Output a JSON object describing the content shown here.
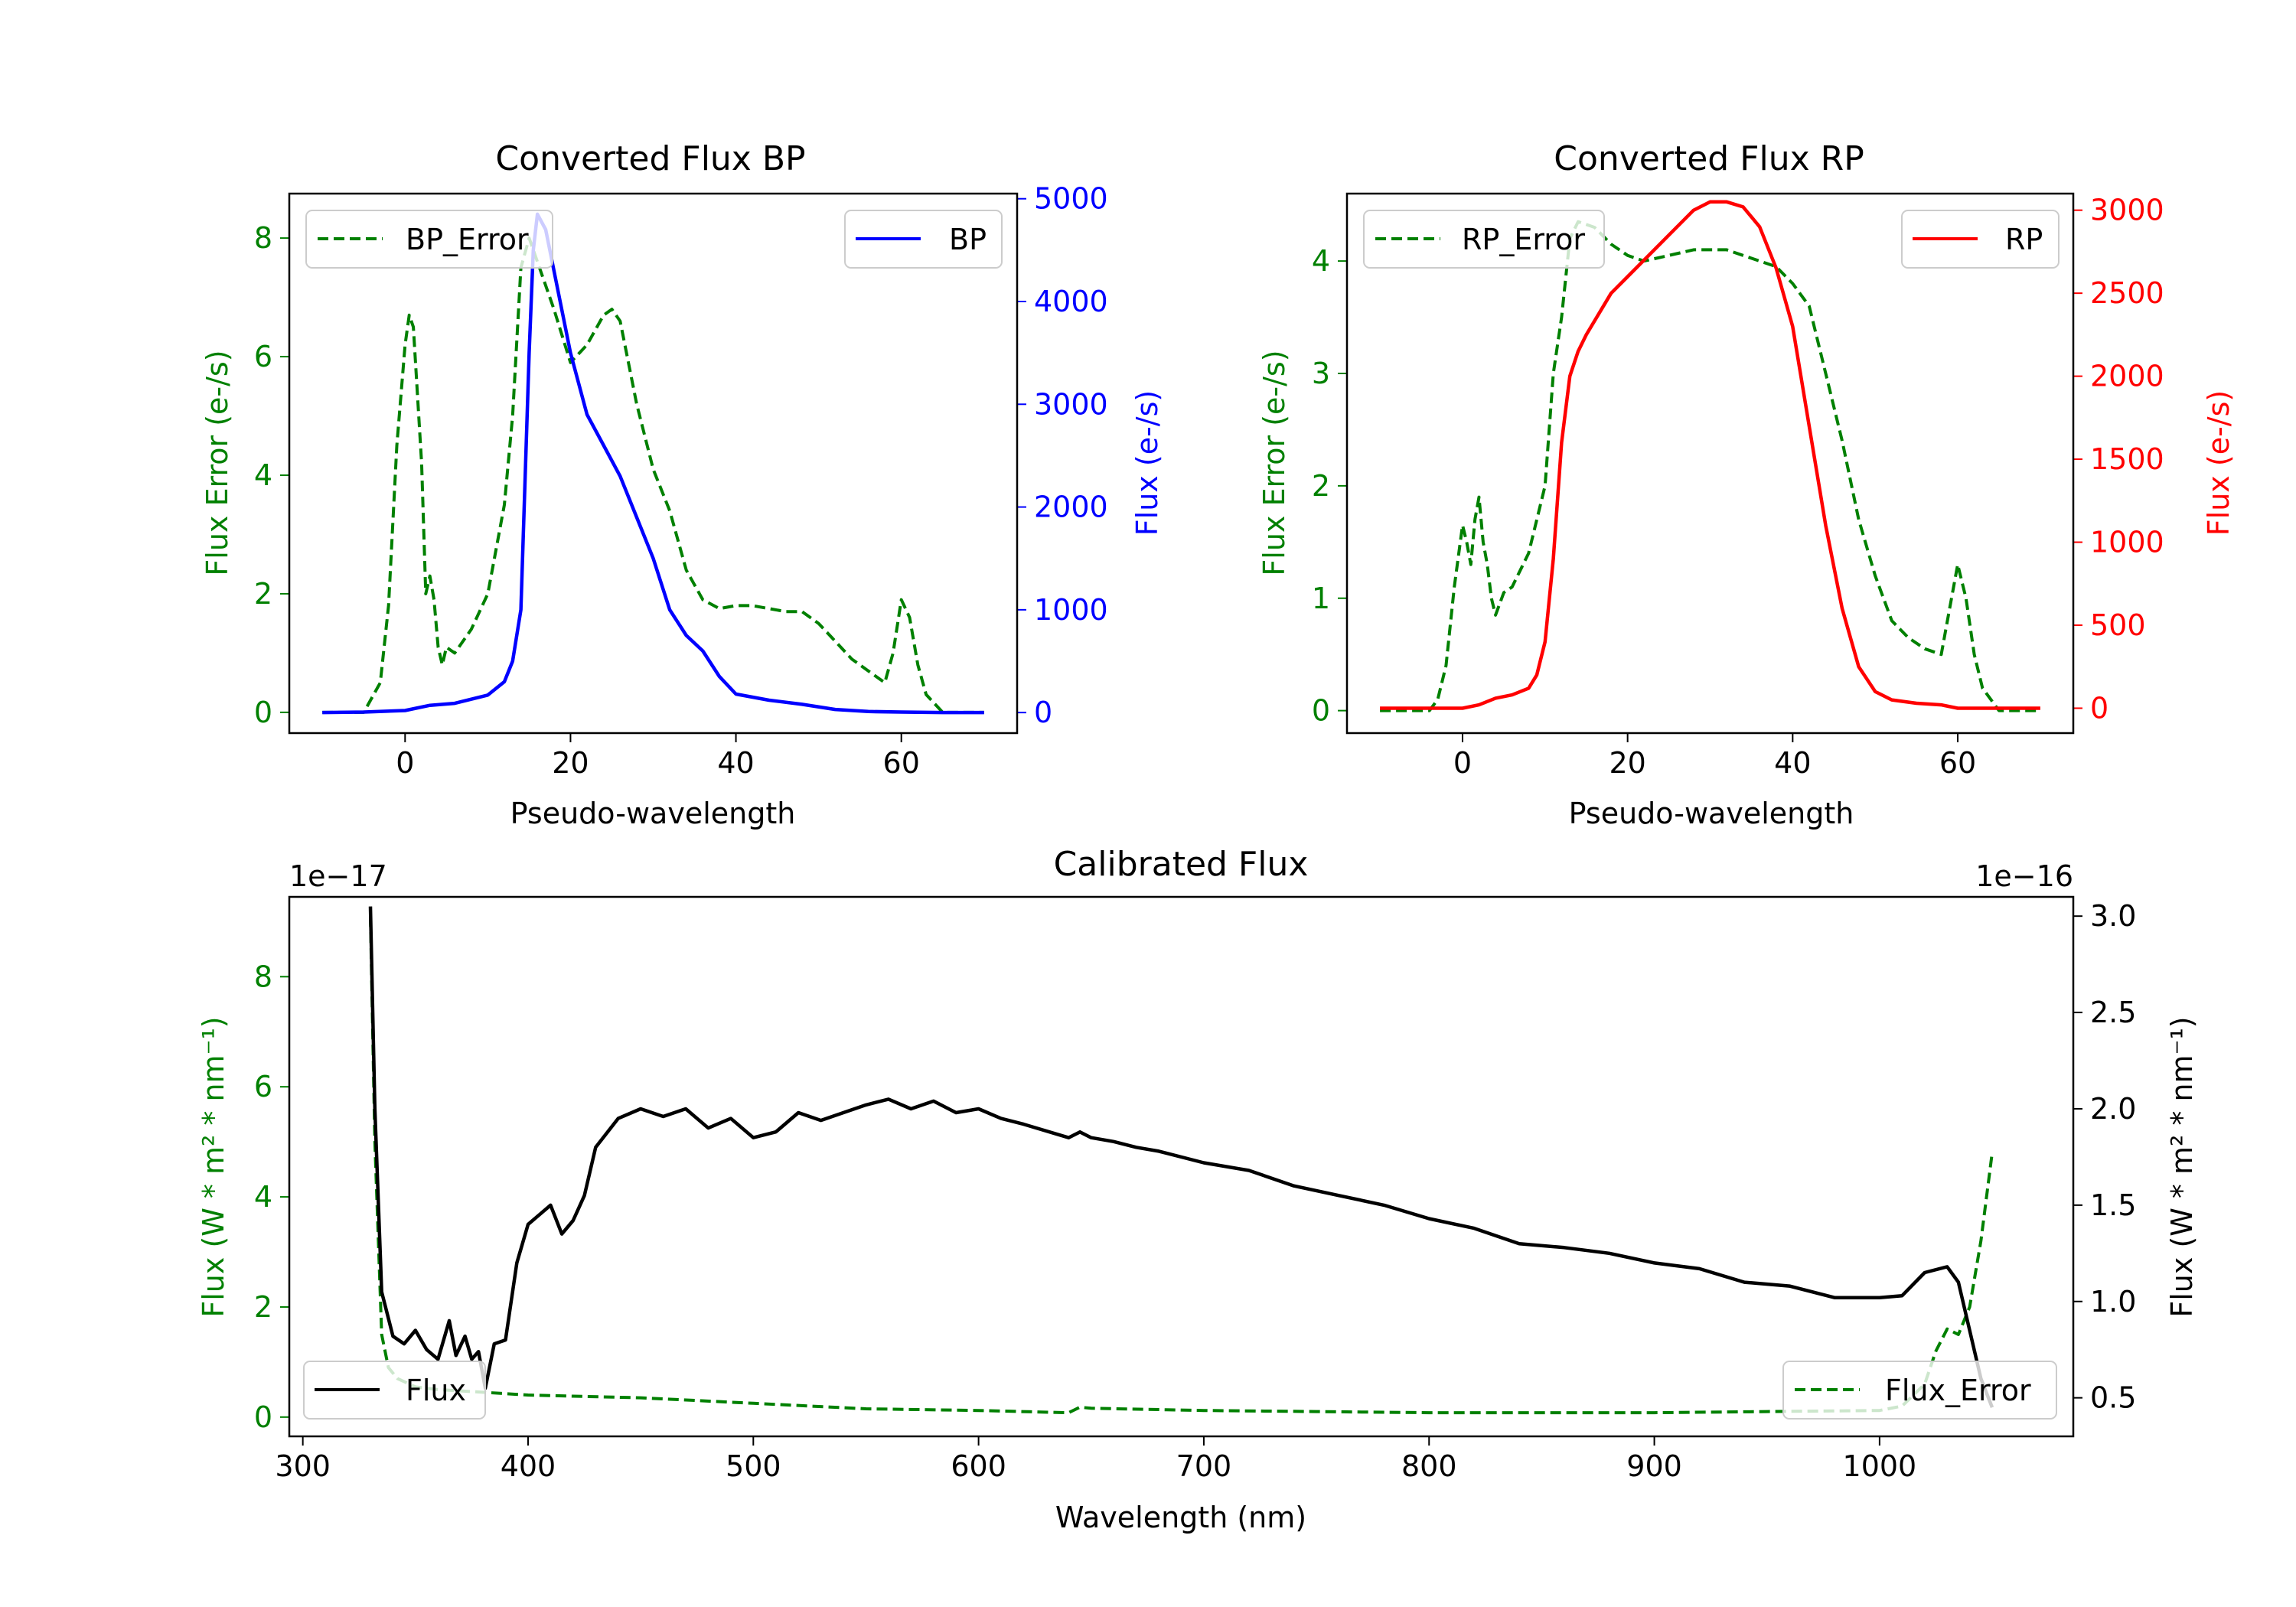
{
  "colors": {
    "blue": "#0000ff",
    "red": "#ff0000",
    "green": "#008000",
    "black": "#000000",
    "axis": "#000000"
  },
  "chart_data": [
    {
      "type": "line",
      "title": "Converted Flux BP",
      "xlabel": "Pseudo-wavelength",
      "ylabel_left": "Flux Error (e-/s)",
      "ylabel_right": "Flux (e-/s)",
      "xlim": [
        -14,
        74
      ],
      "ylim_left": [
        -0.35,
        8.75
      ],
      "ylim_right": [
        -200,
        5050
      ],
      "xticks": [
        0,
        20,
        40,
        60
      ],
      "yticks_left": [
        0,
        2,
        4,
        6,
        8
      ],
      "yticks_right": [
        0,
        1000,
        2000,
        3000,
        4000,
        5000
      ],
      "legend_left": "BP_Error",
      "legend_right": "BP",
      "series": [
        {
          "name": "BP",
          "axis": "right",
          "color": "#0000ff",
          "dash": false,
          "x": [
            -10,
            -5,
            0,
            3,
            6,
            8,
            10,
            12,
            13,
            14,
            15,
            15.5,
            16,
            17,
            18,
            20,
            22,
            24,
            26,
            28,
            30,
            32,
            34,
            36,
            38,
            40,
            44,
            48,
            52,
            56,
            60,
            65,
            70
          ],
          "y": [
            0,
            5,
            20,
            70,
            90,
            130,
            170,
            300,
            500,
            1000,
            3500,
            4500,
            4850,
            4700,
            4300,
            3500,
            2900,
            2600,
            2300,
            1900,
            1500,
            1000,
            750,
            600,
            350,
            180,
            120,
            80,
            30,
            10,
            5,
            0,
            0
          ]
        },
        {
          "name": "BP_Error",
          "axis": "left",
          "color": "#008000",
          "dash": true,
          "x": [
            -10,
            -5,
            -3,
            -2,
            -1,
            0,
            0.5,
            1,
            2,
            2.5,
            3,
            3.5,
            4,
            4.5,
            5,
            6,
            8,
            10,
            12,
            13,
            14,
            15,
            16,
            18,
            20,
            22,
            24,
            25,
            26,
            28,
            30,
            32,
            34,
            36,
            38,
            40,
            42,
            44,
            46,
            48,
            50,
            52,
            54,
            56,
            58,
            59,
            60,
            61,
            62,
            63,
            65,
            70
          ],
          "y": [
            0,
            0,
            0.5,
            1.8,
            4.5,
            6.2,
            6.7,
            6.5,
            4.2,
            2.0,
            2.3,
            1.9,
            1.1,
            0.8,
            1.1,
            1.0,
            1.4,
            2.0,
            3.5,
            5.0,
            7.5,
            8.0,
            7.6,
            6.8,
            5.9,
            6.2,
            6.7,
            6.8,
            6.6,
            5.2,
            4.1,
            3.4,
            2.4,
            1.9,
            1.75,
            1.8,
            1.8,
            1.75,
            1.7,
            1.7,
            1.5,
            1.2,
            0.9,
            0.7,
            0.5,
            1.0,
            1.9,
            1.6,
            0.8,
            0.3,
            0,
            0
          ]
        }
      ]
    },
    {
      "type": "line",
      "title": "Converted Flux RP",
      "xlabel": "Pseudo-wavelength",
      "ylabel_left": "Flux Error (e-/s)",
      "ylabel_right": "Flux (e-/s)",
      "xlim": [
        -14,
        74
      ],
      "ylim_left": [
        -0.2,
        4.6
      ],
      "ylim_right": [
        -150,
        3100
      ],
      "xticks": [
        0,
        20,
        40,
        60
      ],
      "yticks_left": [
        0,
        1,
        2,
        3,
        4
      ],
      "yticks_right": [
        0,
        500,
        1000,
        1500,
        2000,
        2500,
        3000
      ],
      "legend_left": "RP_Error",
      "legend_right": "RP",
      "series": [
        {
          "name": "RP",
          "axis": "right",
          "color": "#ff0000",
          "dash": false,
          "x": [
            -10,
            -5,
            0,
            2,
            4,
            6,
            8,
            9,
            10,
            11,
            12,
            13,
            14,
            15,
            18,
            20,
            22,
            25,
            28,
            30,
            32,
            34,
            36,
            38,
            40,
            42,
            44,
            46,
            48,
            50,
            52,
            55,
            58,
            60,
            65,
            70
          ],
          "y": [
            0,
            0,
            0,
            20,
            60,
            80,
            120,
            200,
            400,
            900,
            1600,
            2000,
            2150,
            2250,
            2500,
            2600,
            2700,
            2850,
            3000,
            3050,
            3050,
            3020,
            2900,
            2650,
            2300,
            1700,
            1100,
            600,
            250,
            100,
            50,
            30,
            20,
            0,
            0,
            0
          ],
          "y_error_scale": 1
        },
        {
          "name": "RP_Error",
          "axis": "left",
          "color": "#008000",
          "dash": true,
          "x": [
            -10,
            -4,
            -3,
            -2,
            -1,
            0,
            0.5,
            1,
            1.5,
            2,
            2.5,
            3,
            3.5,
            4,
            5,
            6,
            8,
            10,
            11,
            12,
            13,
            14,
            16,
            18,
            20,
            22,
            25,
            28,
            30,
            32,
            34,
            36,
            38,
            40,
            42,
            44,
            46,
            48,
            50,
            52,
            54,
            56,
            58,
            59,
            60,
            61,
            62,
            63,
            65,
            70
          ],
          "y": [
            0,
            0,
            0.1,
            0.4,
            1.1,
            1.65,
            1.5,
            1.3,
            1.7,
            1.9,
            1.5,
            1.3,
            1.0,
            0.85,
            1.05,
            1.1,
            1.4,
            2.0,
            3.0,
            3.5,
            4.2,
            4.35,
            4.3,
            4.15,
            4.05,
            4.0,
            4.05,
            4.1,
            4.1,
            4.1,
            4.05,
            4.0,
            3.95,
            3.8,
            3.6,
            3.0,
            2.4,
            1.7,
            1.2,
            0.8,
            0.65,
            0.55,
            0.5,
            0.9,
            1.3,
            1.0,
            0.5,
            0.2,
            0,
            0
          ]
        }
      ]
    },
    {
      "type": "line",
      "title": "Calibrated Flux",
      "xlabel": "Wavelength (nm)",
      "ylabel_left": "Flux (W * m² * nm⁻¹)",
      "ylabel_right": "Flux (W * m² * nm⁻¹)",
      "offset_left": "1e−17",
      "offset_right": "1e−16",
      "xlim": [
        294,
        1086
      ],
      "ylim_left": [
        -0.35,
        9.45
      ],
      "ylim_right": [
        0.3,
        3.1
      ],
      "xticks": [
        300,
        400,
        500,
        600,
        700,
        800,
        900,
        1000
      ],
      "yticks_left": [
        0,
        2,
        4,
        6,
        8
      ],
      "yticks_right": [
        0.5,
        1.0,
        1.5,
        2.0,
        2.5,
        3.0
      ],
      "ytick_labels_right": [
        "0.5",
        "1.0",
        "1.5",
        "2.0",
        "2.5",
        "3.0"
      ],
      "legend_left": "Flux",
      "legend_right": "Flux_Error",
      "series": [
        {
          "name": "Flux",
          "axis": "right",
          "color": "#000000",
          "dash": false,
          "x": [
            330,
            332,
            335,
            340,
            345,
            350,
            355,
            360,
            365,
            368,
            372,
            375,
            378,
            381,
            385,
            390,
            395,
            400,
            405,
            410,
            415,
            420,
            425,
            430,
            440,
            450,
            460,
            470,
            480,
            490,
            500,
            510,
            520,
            530,
            540,
            550,
            560,
            570,
            580,
            590,
            600,
            610,
            620,
            640,
            645,
            650,
            660,
            670,
            680,
            700,
            720,
            740,
            760,
            780,
            800,
            820,
            840,
            860,
            880,
            900,
            920,
            940,
            960,
            980,
            1000,
            1010,
            1020,
            1030,
            1035,
            1040,
            1045,
            1050
          ],
          "y": [
            3.05,
            2.0,
            1.05,
            0.82,
            0.78,
            0.85,
            0.75,
            0.7,
            0.9,
            0.72,
            0.82,
            0.7,
            0.74,
            0.55,
            0.78,
            0.8,
            1.2,
            1.4,
            1.45,
            1.5,
            1.35,
            1.42,
            1.55,
            1.8,
            1.95,
            2.0,
            1.96,
            2.0,
            1.9,
            1.95,
            1.85,
            1.88,
            1.98,
            1.94,
            1.98,
            2.02,
            2.05,
            2.0,
            2.04,
            1.98,
            2.0,
            1.95,
            1.92,
            1.85,
            1.88,
            1.85,
            1.83,
            1.8,
            1.78,
            1.72,
            1.68,
            1.6,
            1.55,
            1.5,
            1.43,
            1.38,
            1.3,
            1.28,
            1.25,
            1.2,
            1.17,
            1.1,
            1.08,
            1.02,
            1.02,
            1.03,
            1.15,
            1.18,
            1.1,
            0.85,
            0.6,
            0.45
          ]
        },
        {
          "name": "Flux_Error",
          "axis": "left",
          "color": "#008000",
          "dash": true,
          "x": [
            330,
            332,
            335,
            338,
            342,
            350,
            360,
            380,
            400,
            420,
            450,
            500,
            550,
            600,
            640,
            645,
            650,
            700,
            750,
            800,
            850,
            900,
            950,
            1000,
            1010,
            1020,
            1025,
            1030,
            1035,
            1040,
            1045,
            1050
          ],
          "y": [
            9.1,
            5.0,
            1.5,
            0.9,
            0.7,
            0.55,
            0.5,
            0.45,
            0.4,
            0.38,
            0.35,
            0.25,
            0.15,
            0.12,
            0.08,
            0.18,
            0.16,
            0.12,
            0.1,
            0.08,
            0.08,
            0.08,
            0.1,
            0.12,
            0.2,
            0.6,
            1.2,
            1.6,
            1.5,
            2.0,
            3.2,
            4.8
          ]
        }
      ]
    }
  ]
}
